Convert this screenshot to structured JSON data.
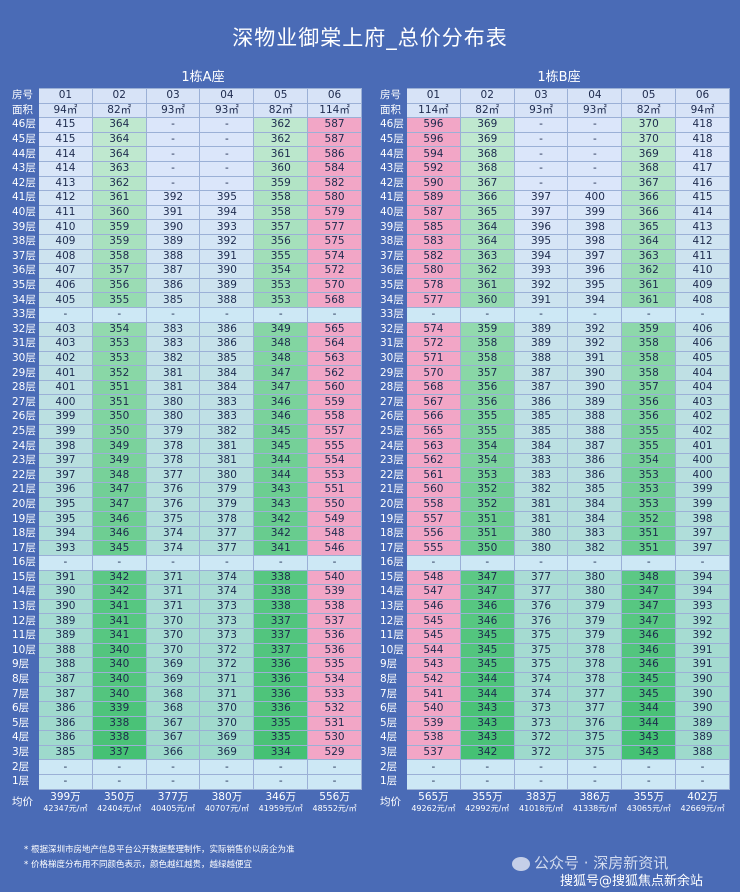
{
  "title": "深物业御棠上府_总价分布表",
  "buildings": [
    {
      "name": "1栋A座",
      "room_label": "房号",
      "area_label": "面积",
      "avg_label": "均价",
      "units": [
        "01",
        "02",
        "03",
        "04",
        "05",
        "06"
      ],
      "areas": [
        "94㎡",
        "82㎡",
        "93㎡",
        "93㎡",
        "82㎡",
        "114㎡"
      ],
      "floors": [
        [
          "46层",
          "415",
          "364",
          "-",
          "-",
          "362",
          "587"
        ],
        [
          "45层",
          "415",
          "364",
          "-",
          "-",
          "362",
          "587"
        ],
        [
          "44层",
          "414",
          "364",
          "-",
          "-",
          "361",
          "586"
        ],
        [
          "43层",
          "414",
          "363",
          "-",
          "-",
          "360",
          "584"
        ],
        [
          "42层",
          "413",
          "362",
          "-",
          "-",
          "359",
          "582"
        ],
        [
          "41层",
          "412",
          "361",
          "392",
          "395",
          "358",
          "580"
        ],
        [
          "40层",
          "411",
          "360",
          "391",
          "394",
          "358",
          "579"
        ],
        [
          "39层",
          "410",
          "359",
          "390",
          "393",
          "357",
          "577"
        ],
        [
          "38层",
          "409",
          "359",
          "389",
          "392",
          "356",
          "575"
        ],
        [
          "37层",
          "408",
          "358",
          "388",
          "391",
          "355",
          "574"
        ],
        [
          "36层",
          "407",
          "357",
          "387",
          "390",
          "354",
          "572"
        ],
        [
          "35层",
          "406",
          "356",
          "386",
          "389",
          "353",
          "570"
        ],
        [
          "34层",
          "405",
          "355",
          "385",
          "388",
          "353",
          "568"
        ],
        [
          "33层",
          "-",
          "-",
          "-",
          "-",
          "-",
          "-"
        ],
        [
          "32层",
          "403",
          "354",
          "383",
          "386",
          "349",
          "565"
        ],
        [
          "31层",
          "403",
          "353",
          "383",
          "386",
          "348",
          "564"
        ],
        [
          "30层",
          "402",
          "353",
          "382",
          "385",
          "348",
          "563"
        ],
        [
          "29层",
          "401",
          "352",
          "381",
          "384",
          "347",
          "562"
        ],
        [
          "28层",
          "401",
          "351",
          "381",
          "384",
          "347",
          "560"
        ],
        [
          "27层",
          "400",
          "351",
          "380",
          "383",
          "346",
          "559"
        ],
        [
          "26层",
          "399",
          "350",
          "380",
          "383",
          "346",
          "558"
        ],
        [
          "25层",
          "399",
          "350",
          "379",
          "382",
          "345",
          "557"
        ],
        [
          "24层",
          "398",
          "349",
          "378",
          "381",
          "345",
          "555"
        ],
        [
          "23层",
          "397",
          "349",
          "378",
          "381",
          "344",
          "554"
        ],
        [
          "22层",
          "397",
          "348",
          "377",
          "380",
          "344",
          "553"
        ],
        [
          "21层",
          "396",
          "347",
          "376",
          "379",
          "343",
          "551"
        ],
        [
          "20层",
          "395",
          "347",
          "376",
          "379",
          "343",
          "550"
        ],
        [
          "19层",
          "395",
          "346",
          "375",
          "378",
          "342",
          "549"
        ],
        [
          "18层",
          "394",
          "346",
          "374",
          "377",
          "342",
          "548"
        ],
        [
          "17层",
          "393",
          "345",
          "374",
          "377",
          "341",
          "546"
        ],
        [
          "16层",
          "-",
          "-",
          "-",
          "-",
          "-",
          "-"
        ],
        [
          "15层",
          "391",
          "342",
          "371",
          "374",
          "338",
          "540"
        ],
        [
          "14层",
          "390",
          "342",
          "371",
          "374",
          "338",
          "539"
        ],
        [
          "13层",
          "390",
          "341",
          "371",
          "373",
          "338",
          "538"
        ],
        [
          "12层",
          "389",
          "341",
          "370",
          "373",
          "337",
          "537"
        ],
        [
          "11层",
          "389",
          "341",
          "370",
          "373",
          "337",
          "536"
        ],
        [
          "10层",
          "388",
          "340",
          "370",
          "372",
          "337",
          "536"
        ],
        [
          "9层",
          "388",
          "340",
          "369",
          "372",
          "336",
          "535"
        ],
        [
          "8层",
          "387",
          "340",
          "369",
          "371",
          "336",
          "534"
        ],
        [
          "7层",
          "387",
          "340",
          "368",
          "371",
          "336",
          "533"
        ],
        [
          "6层",
          "386",
          "339",
          "368",
          "370",
          "336",
          "532"
        ],
        [
          "5层",
          "386",
          "338",
          "367",
          "370",
          "335",
          "531"
        ],
        [
          "4层",
          "386",
          "338",
          "367",
          "369",
          "335",
          "530"
        ],
        [
          "3层",
          "385",
          "337",
          "366",
          "369",
          "334",
          "529"
        ],
        [
          "2层",
          "-",
          "-",
          "-",
          "-",
          "-",
          "-"
        ],
        [
          "1层",
          "-",
          "-",
          "-",
          "-",
          "-",
          "-"
        ]
      ],
      "averages": [
        {
          "price": "399万",
          "unit": "42347元/㎡"
        },
        {
          "price": "350万",
          "unit": "42404元/㎡"
        },
        {
          "price": "377万",
          "unit": "40405元/㎡"
        },
        {
          "price": "380万",
          "unit": "40707元/㎡"
        },
        {
          "price": "346万",
          "unit": "41959元/㎡"
        },
        {
          "price": "556万",
          "unit": "48552元/㎡"
        }
      ]
    },
    {
      "name": "1栋B座",
      "room_label": "房号",
      "area_label": "面积",
      "avg_label": "均价",
      "units": [
        "01",
        "02",
        "03",
        "04",
        "05",
        "06"
      ],
      "areas": [
        "114㎡",
        "82㎡",
        "93㎡",
        "93㎡",
        "82㎡",
        "94㎡"
      ],
      "floors": [
        [
          "46层",
          "596",
          "369",
          "-",
          "-",
          "370",
          "418"
        ],
        [
          "45层",
          "596",
          "369",
          "-",
          "-",
          "370",
          "418"
        ],
        [
          "44层",
          "594",
          "368",
          "-",
          "-",
          "369",
          "418"
        ],
        [
          "43层",
          "592",
          "368",
          "-",
          "-",
          "368",
          "417"
        ],
        [
          "42层",
          "590",
          "367",
          "-",
          "-",
          "367",
          "416"
        ],
        [
          "41层",
          "589",
          "366",
          "397",
          "400",
          "366",
          "415"
        ],
        [
          "40层",
          "587",
          "365",
          "397",
          "399",
          "366",
          "414"
        ],
        [
          "39层",
          "585",
          "364",
          "396",
          "398",
          "365",
          "413"
        ],
        [
          "38层",
          "583",
          "364",
          "395",
          "398",
          "364",
          "412"
        ],
        [
          "37层",
          "582",
          "363",
          "394",
          "397",
          "363",
          "411"
        ],
        [
          "36层",
          "580",
          "362",
          "393",
          "396",
          "362",
          "410"
        ],
        [
          "35层",
          "578",
          "361",
          "392",
          "395",
          "361",
          "409"
        ],
        [
          "34层",
          "577",
          "360",
          "391",
          "394",
          "361",
          "408"
        ],
        [
          "33层",
          "-",
          "-",
          "-",
          "-",
          "-",
          "-"
        ],
        [
          "32层",
          "574",
          "359",
          "389",
          "392",
          "359",
          "406"
        ],
        [
          "31层",
          "572",
          "358",
          "389",
          "392",
          "358",
          "406"
        ],
        [
          "30层",
          "571",
          "358",
          "388",
          "391",
          "358",
          "405"
        ],
        [
          "29层",
          "570",
          "357",
          "387",
          "390",
          "358",
          "404"
        ],
        [
          "28层",
          "568",
          "356",
          "387",
          "390",
          "357",
          "404"
        ],
        [
          "27层",
          "567",
          "356",
          "386",
          "389",
          "356",
          "403"
        ],
        [
          "26层",
          "566",
          "355",
          "385",
          "388",
          "356",
          "402"
        ],
        [
          "25层",
          "565",
          "355",
          "385",
          "388",
          "355",
          "402"
        ],
        [
          "24层",
          "563",
          "354",
          "384",
          "387",
          "355",
          "401"
        ],
        [
          "23层",
          "562",
          "354",
          "383",
          "386",
          "354",
          "400"
        ],
        [
          "22层",
          "561",
          "353",
          "383",
          "386",
          "353",
          "400"
        ],
        [
          "21层",
          "560",
          "352",
          "382",
          "385",
          "353",
          "399"
        ],
        [
          "20层",
          "558",
          "352",
          "381",
          "384",
          "353",
          "399"
        ],
        [
          "19层",
          "557",
          "351",
          "381",
          "384",
          "352",
          "398"
        ],
        [
          "18层",
          "556",
          "351",
          "380",
          "383",
          "351",
          "397"
        ],
        [
          "17层",
          "555",
          "350",
          "380",
          "382",
          "351",
          "397"
        ],
        [
          "16层",
          "-",
          "-",
          "-",
          "-",
          "-",
          "-"
        ],
        [
          "15层",
          "548",
          "347",
          "377",
          "380",
          "348",
          "394"
        ],
        [
          "14层",
          "547",
          "347",
          "377",
          "380",
          "347",
          "394"
        ],
        [
          "13层",
          "546",
          "346",
          "376",
          "379",
          "347",
          "393"
        ],
        [
          "12层",
          "545",
          "346",
          "376",
          "379",
          "347",
          "392"
        ],
        [
          "11层",
          "545",
          "345",
          "375",
          "379",
          "346",
          "392"
        ],
        [
          "10层",
          "544",
          "345",
          "375",
          "378",
          "346",
          "391"
        ],
        [
          "9层",
          "543",
          "345",
          "375",
          "378",
          "346",
          "391"
        ],
        [
          "8层",
          "542",
          "344",
          "374",
          "378",
          "345",
          "390"
        ],
        [
          "7层",
          "541",
          "344",
          "374",
          "377",
          "345",
          "390"
        ],
        [
          "6层",
          "540",
          "343",
          "373",
          "377",
          "344",
          "390"
        ],
        [
          "5层",
          "539",
          "343",
          "373",
          "376",
          "344",
          "389"
        ],
        [
          "4层",
          "538",
          "343",
          "372",
          "375",
          "343",
          "389"
        ],
        [
          "3层",
          "537",
          "342",
          "372",
          "375",
          "343",
          "388"
        ],
        [
          "2层",
          "-",
          "-",
          "-",
          "-",
          "-",
          "-"
        ],
        [
          "1层",
          "-",
          "-",
          "-",
          "-",
          "-",
          "-"
        ]
      ],
      "averages": [
        {
          "price": "565万",
          "unit": "49262元/㎡"
        },
        {
          "price": "355万",
          "unit": "42992元/㎡"
        },
        {
          "price": "383万",
          "unit": "41018元/㎡"
        },
        {
          "price": "386万",
          "unit": "41338元/㎡"
        },
        {
          "price": "355万",
          "unit": "43065元/㎡"
        },
        {
          "price": "402万",
          "unit": "42669元/㎡"
        }
      ]
    }
  ],
  "notes": [
    "* 根据深圳市房地产信息平台公开数据整理制作，实际销售价以房企为准",
    "* 价格梯度分布用不同颜色表示，颜色越红越贵，越绿越便宜"
  ],
  "watermark": "公众号 · 深房新资讯",
  "watermark_source": "搜狐号@搜狐焦点新余站",
  "colors": {
    "background": "#4a6bb6",
    "expensive": "#f2a6c6",
    "cheap_light": "#bfe8cf",
    "cheap_dark": "#3fbf6f",
    "neutral": "#dbe6fa"
  }
}
